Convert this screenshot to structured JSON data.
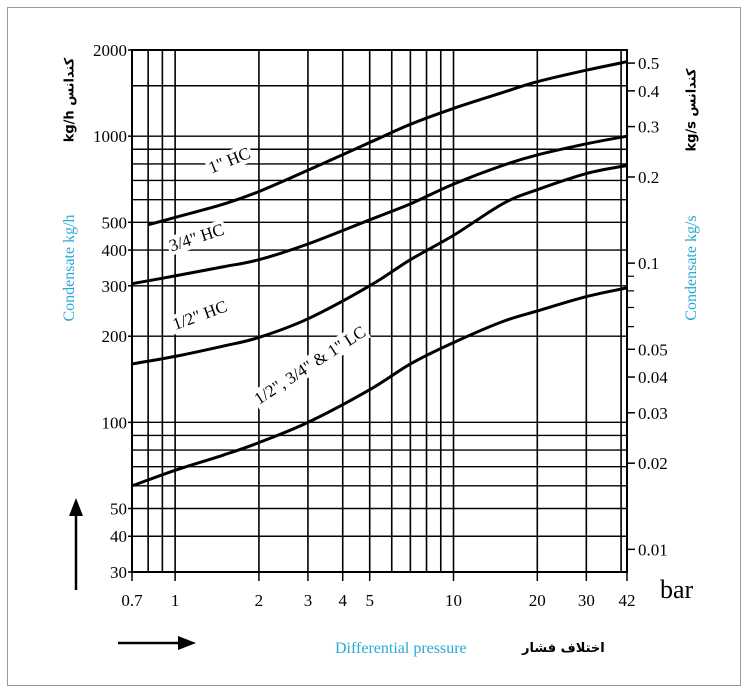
{
  "colors": {
    "axis_title": "#29a9d6",
    "ink": "#000000",
    "frame": "#9a9a9a"
  },
  "chart_data": {
    "type": "line",
    "x_scale": "log",
    "y_scale": "log",
    "xlim": [
      0.7,
      42
    ],
    "ylim": [
      30,
      2000
    ],
    "y2lim": [
      0.00833,
      0.5556
    ],
    "grid": true,
    "legend": "inline-labels",
    "x_ticks": [
      0.7,
      1,
      2,
      3,
      4,
      5,
      10,
      20,
      30,
      42
    ],
    "x_tick_labels": [
      "0.7",
      "1",
      "2",
      "3",
      "4",
      "5",
      "10",
      "20",
      "30",
      "42"
    ],
    "y_ticks": [
      30,
      40,
      50,
      100,
      200,
      300,
      400,
      500,
      1000,
      2000
    ],
    "y_tick_labels": [
      "30",
      "40",
      "50",
      "100",
      "200",
      "300",
      "400",
      "500",
      "1000",
      "2000"
    ],
    "y2_ticks": [
      0.01,
      0.02,
      0.03,
      0.04,
      0.05,
      0.1,
      0.2,
      0.3,
      0.4,
      0.5
    ],
    "y2_tick_labels": [
      "0.01",
      "0.02",
      "0.03",
      "0.04",
      "0.05",
      "0.1",
      "0.2",
      "0.3",
      "0.4",
      "0.5"
    ],
    "xunit": "bar",
    "xlabel_en": "Differential pressure",
    "xlabel_fa": "اختلاف فشار",
    "ylabel_en": "Condensate kg/h",
    "ylabel_fa": "kg/h کندانس",
    "y2label_en": "Condensate kg/s",
    "y2label_fa": "kg/s کندانس",
    "series": [
      {
        "name": "1\" HC",
        "x": [
          0.8,
          1,
          1.5,
          2,
          3,
          5,
          7,
          10,
          15,
          20,
          30,
          42
        ],
        "y": [
          490,
          520,
          580,
          640,
          760,
          950,
          1100,
          1250,
          1420,
          1550,
          1700,
          1820
        ]
      },
      {
        "name": "3/4\" HC",
        "x": [
          0.7,
          1,
          1.5,
          2,
          3,
          5,
          7,
          10,
          15,
          20,
          30,
          42
        ],
        "y": [
          305,
          325,
          350,
          370,
          420,
          510,
          580,
          680,
          790,
          860,
          940,
          1000
        ]
      },
      {
        "name": "1/2\" HC",
        "x": [
          0.7,
          1,
          1.5,
          2,
          3,
          5,
          7,
          10,
          15,
          20,
          30,
          42
        ],
        "y": [
          160,
          170,
          185,
          198,
          230,
          300,
          370,
          450,
          580,
          650,
          740,
          790
        ]
      },
      {
        "name": "1/2\", 3/4\" & 1\" LC",
        "x": [
          0.7,
          1,
          1.5,
          2,
          3,
          5,
          7,
          10,
          15,
          20,
          30,
          42
        ],
        "y": [
          60,
          68,
          77,
          85,
          100,
          130,
          160,
          190,
          225,
          245,
          275,
          295
        ]
      }
    ]
  }
}
